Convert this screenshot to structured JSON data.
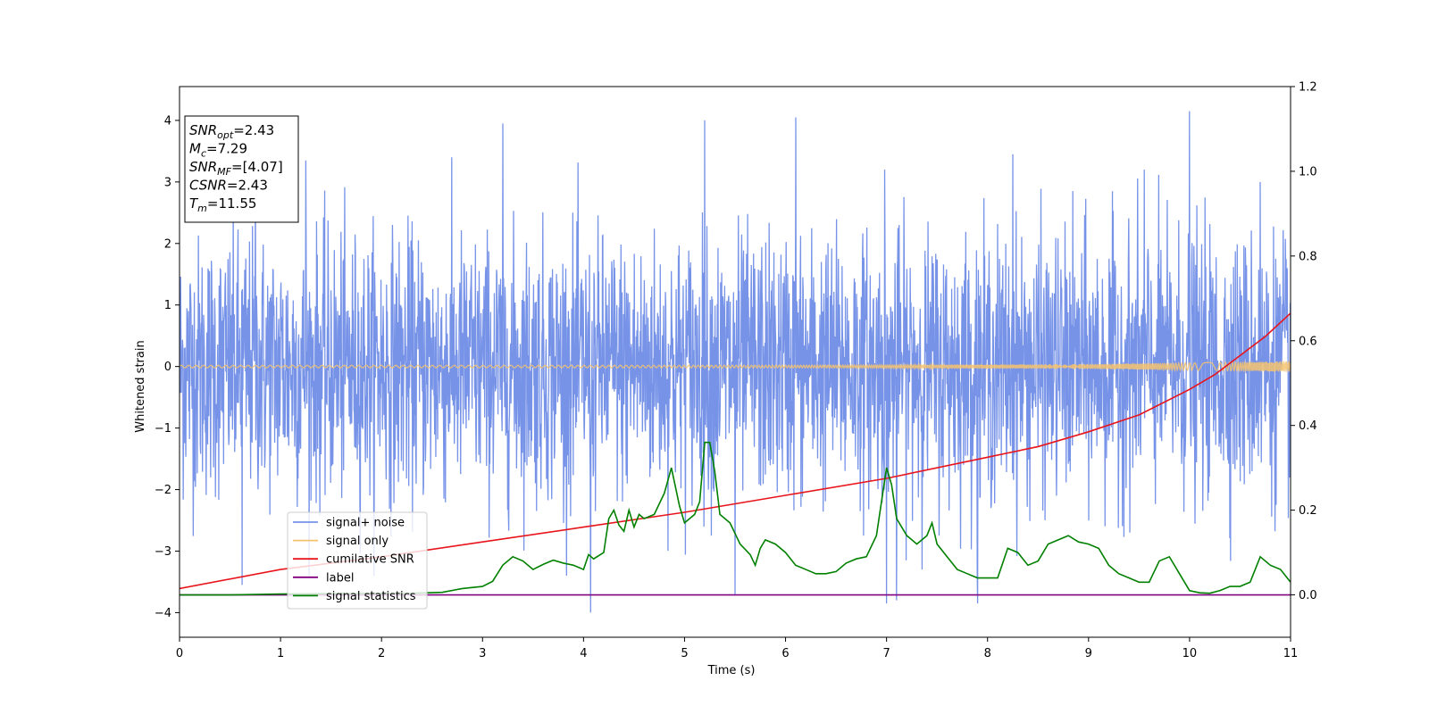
{
  "chart_data": {
    "type": "line",
    "title": "",
    "xlabel": "Time (s)",
    "ylabel": "Whitened strain",
    "xlim": [
      0,
      11
    ],
    "ylim": [
      -4.4,
      4.55
    ],
    "y2lim": [
      -0.1,
      1.2
    ],
    "x_ticks": [
      0,
      1,
      2,
      3,
      4,
      5,
      6,
      7,
      8,
      9,
      10,
      11
    ],
    "y_ticks": [
      -4,
      -3,
      -2,
      -1,
      0,
      1,
      2,
      3,
      4
    ],
    "y_tick_labels": [
      "−4",
      "−3",
      "−2",
      "−1",
      "0",
      "1",
      "2",
      "3",
      "4"
    ],
    "y2_ticks": [
      0.0,
      0.2,
      0.4,
      0.6,
      0.8,
      1.0,
      1.2
    ],
    "y2_tick_labels": [
      "0.0",
      "0.2",
      "0.4",
      "0.6",
      "0.8",
      "1.0",
      "1.2"
    ],
    "grid": false,
    "legend_position": "lower-left",
    "info_box": {
      "position": "top-left",
      "lines": [
        {
          "sym": "SNR",
          "sub": "opt",
          "rest": "=2.43"
        },
        {
          "sym": "M",
          "sub": "c",
          "rest": "=7.29"
        },
        {
          "sym": "SNR",
          "sub": "MF",
          "rest": "=[4.07]"
        },
        {
          "sym": "CSNR",
          "sub": "",
          "rest": "=2.43"
        },
        {
          "sym": "T",
          "sub": "m",
          "rest": "=11.55"
        }
      ]
    },
    "series": [
      {
        "name": "signal+ noise",
        "color": "#7793e8",
        "axis": "left",
        "kind": "noise",
        "sigma": 1.0,
        "peaks": [
          {
            "x": 0.62,
            "y": -3.55
          },
          {
            "x": 0.75,
            "y": 3.0
          },
          {
            "x": 1.25,
            "y": 3.35
          },
          {
            "x": 3.2,
            "y": 3.95
          },
          {
            "x": 4.07,
            "y": -4.0
          },
          {
            "x": 5.2,
            "y": 4.0
          },
          {
            "x": 5.5,
            "y": -3.7
          },
          {
            "x": 6.1,
            "y": 4.05
          },
          {
            "x": 6.98,
            "y": 3.2
          },
          {
            "x": 7.0,
            "y": -3.85
          },
          {
            "x": 7.1,
            "y": -3.8
          },
          {
            "x": 7.9,
            "y": -3.85
          },
          {
            "x": 8.25,
            "y": 3.45
          },
          {
            "x": 9.55,
            "y": -3.85
          },
          {
            "x": 9.55,
            "y": 3.2
          },
          {
            "x": 10.0,
            "y": 4.15
          },
          {
            "x": 10.7,
            "y": 3.0
          }
        ]
      },
      {
        "name": "signal only",
        "color": "#f5c36e",
        "axis": "left",
        "kind": "chirp",
        "amplitude_start": 0.02,
        "amplitude_end": 0.09
      },
      {
        "name": "cumilative SNR",
        "color": "#e8141c",
        "axis": "right",
        "x": [
          0,
          1,
          2,
          3,
          4,
          5,
          6,
          7,
          8,
          8.5,
          9,
          9.5,
          10,
          10.25,
          10.5,
          10.75,
          11
        ],
        "values": [
          0.015,
          0.06,
          0.09,
          0.125,
          0.16,
          0.195,
          0.235,
          0.275,
          0.325,
          0.35,
          0.385,
          0.425,
          0.485,
          0.52,
          0.565,
          0.61,
          0.665
        ]
      },
      {
        "name": "label",
        "color": "#800080",
        "axis": "right",
        "x": [
          0,
          11
        ],
        "values": [
          0.0,
          0.0
        ]
      },
      {
        "name": "signal statistics",
        "color": "#008000",
        "axis": "right",
        "x": [
          0,
          0.5,
          1.0,
          1.5,
          2.0,
          2.3,
          2.6,
          2.8,
          3.0,
          3.1,
          3.2,
          3.3,
          3.4,
          3.5,
          3.6,
          3.7,
          3.8,
          3.9,
          4.0,
          4.05,
          4.1,
          4.2,
          4.25,
          4.3,
          4.35,
          4.4,
          4.45,
          4.5,
          4.55,
          4.6,
          4.7,
          4.8,
          4.87,
          4.95,
          5.0,
          5.1,
          5.15,
          5.2,
          5.25,
          5.3,
          5.35,
          5.45,
          5.55,
          5.65,
          5.7,
          5.75,
          5.8,
          5.9,
          6.0,
          6.1,
          6.2,
          6.3,
          6.4,
          6.5,
          6.6,
          6.7,
          6.8,
          6.9,
          7.0,
          7.05,
          7.1,
          7.2,
          7.3,
          7.4,
          7.45,
          7.5,
          7.6,
          7.7,
          7.8,
          7.9,
          8.0,
          8.1,
          8.2,
          8.3,
          8.4,
          8.5,
          8.6,
          8.7,
          8.8,
          8.9,
          9.0,
          9.1,
          9.2,
          9.3,
          9.4,
          9.5,
          9.6,
          9.7,
          9.8,
          9.9,
          10.0,
          10.1,
          10.2,
          10.3,
          10.4,
          10.5,
          10.6,
          10.7,
          10.8,
          10.9,
          11.0
        ],
        "values": [
          0.0,
          0.0,
          0.002,
          0.003,
          0.004,
          0.004,
          0.006,
          0.015,
          0.02,
          0.032,
          0.07,
          0.09,
          0.08,
          0.06,
          0.072,
          0.082,
          0.075,
          0.07,
          0.06,
          0.095,
          0.085,
          0.1,
          0.18,
          0.2,
          0.165,
          0.15,
          0.2,
          0.16,
          0.19,
          0.18,
          0.19,
          0.24,
          0.3,
          0.21,
          0.17,
          0.19,
          0.22,
          0.36,
          0.36,
          0.29,
          0.19,
          0.17,
          0.12,
          0.095,
          0.07,
          0.11,
          0.13,
          0.12,
          0.1,
          0.07,
          0.06,
          0.05,
          0.05,
          0.055,
          0.075,
          0.085,
          0.09,
          0.14,
          0.3,
          0.26,
          0.18,
          0.14,
          0.12,
          0.14,
          0.17,
          0.12,
          0.09,
          0.06,
          0.05,
          0.04,
          0.04,
          0.04,
          0.11,
          0.1,
          0.07,
          0.08,
          0.12,
          0.13,
          0.14,
          0.125,
          0.12,
          0.11,
          0.07,
          0.05,
          0.04,
          0.03,
          0.03,
          0.08,
          0.09,
          0.05,
          0.01,
          0.005,
          0.004,
          0.01,
          0.02,
          0.02,
          0.03,
          0.09,
          0.07,
          0.06,
          0.03
        ]
      }
    ]
  }
}
